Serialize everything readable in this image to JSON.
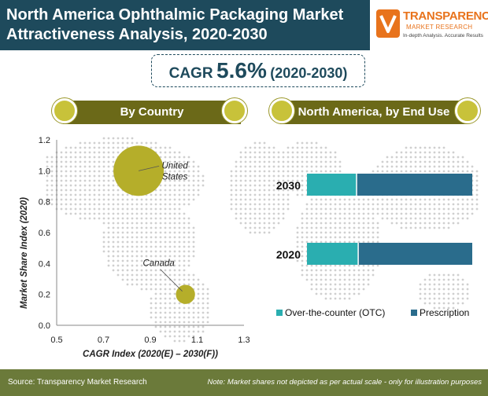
{
  "header": {
    "title_line1": "North America Ophthalmic Packaging Market",
    "title_line2": "Attractiveness Analysis, 2020-2030"
  },
  "logo": {
    "name": "TRANSPARENCY",
    "sub": "MARKET RESEARCH",
    "tagline": "In-depth Analysis. Accurate Results"
  },
  "cagr": {
    "label": "CAGR",
    "value": "5.6%",
    "period": "(2020-2030)"
  },
  "sections": {
    "left": "By Country",
    "right": "North America, by End Use"
  },
  "colors": {
    "header_bg": "#1e4a5c",
    "section_bar": "#6b6918",
    "bubble": "#b5ae2a",
    "otc": "#2aaeb0",
    "prescription": "#2a6c8c",
    "footer_bg": "#6b7a3a"
  },
  "chart_data": [
    {
      "type": "scatter",
      "xlabel": "CAGR Index (2020(E) – 2030(F))",
      "ylabel": "Market Share Index (2020)",
      "xlim": [
        0.5,
        1.3
      ],
      "ylim": [
        0.0,
        1.2
      ],
      "x_ticks": [
        "0.5",
        "0.7",
        "0.9",
        "1.1",
        "1.3"
      ],
      "y_ticks": [
        "0.0",
        "0.2",
        "0.4",
        "0.6",
        "0.8",
        "1.0",
        "1.2"
      ],
      "points": [
        {
          "label_line1": "United",
          "label_line2": "States",
          "x": 0.85,
          "y": 1.0,
          "size": 1.0
        },
        {
          "label_line1": "Canada",
          "label_line2": "",
          "x": 1.05,
          "y": 0.2,
          "size": 0.38
        }
      ]
    },
    {
      "type": "bar",
      "orientation": "horizontal",
      "stacked": true,
      "categories": [
        "2030",
        "2020"
      ],
      "series": [
        {
          "name": "Over-the-counter (OTC)",
          "values": [
            30,
            31
          ]
        },
        {
          "name": "Prescription",
          "values": [
            70,
            69
          ]
        }
      ],
      "legend": "bottom"
    }
  ],
  "footer": {
    "source": "Source: Transparency Market Research",
    "note": "Note: Market shares not depicted as per actual scale - only for illustration purposes"
  }
}
